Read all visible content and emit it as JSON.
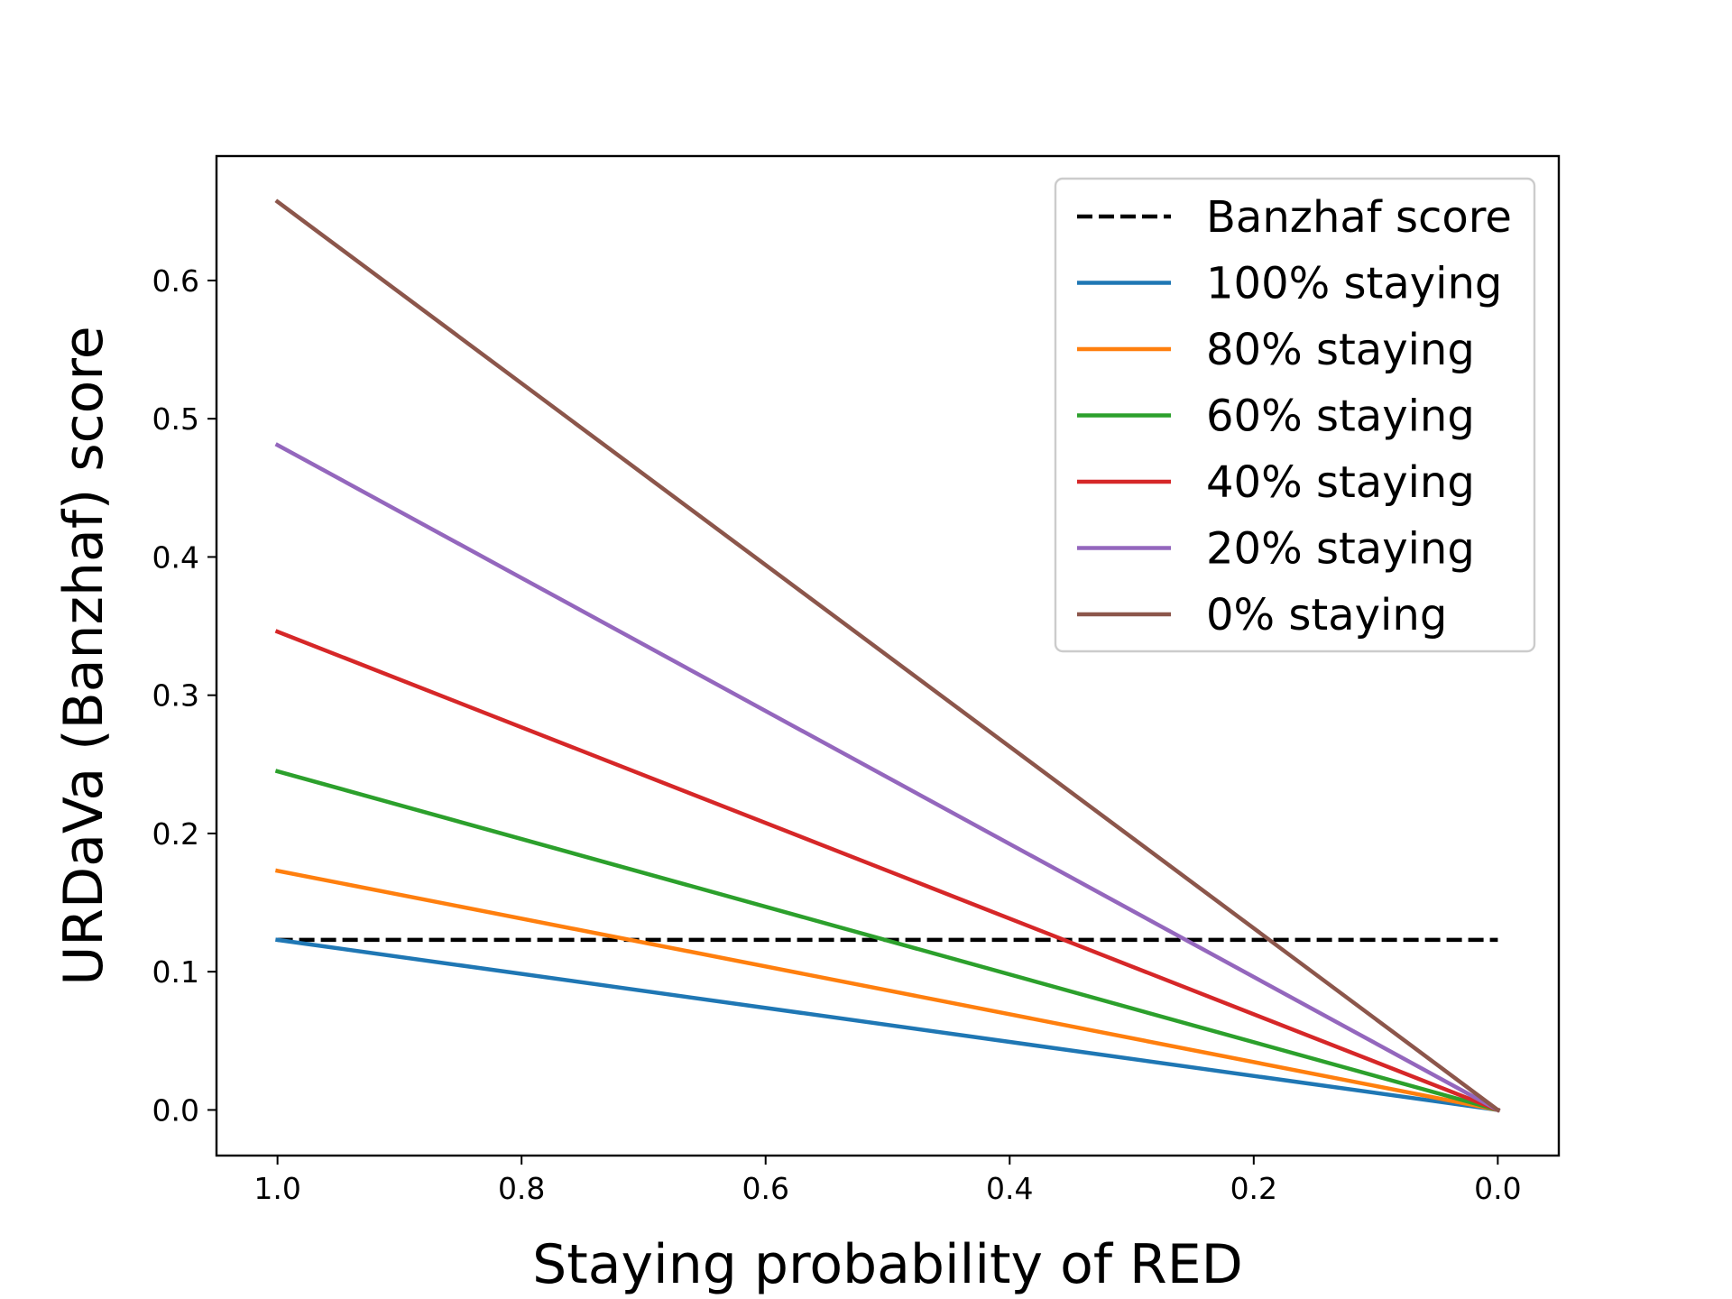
{
  "chart_data": {
    "type": "line",
    "title": "",
    "xlabel": "Staying probability of RED",
    "ylabel": "URDaVa (Banzhaf) score",
    "xlim": [
      1.05,
      -0.05
    ],
    "ylim": [
      -0.033,
      0.69
    ],
    "x_reversed": true,
    "xticks": [
      1.0,
      0.8,
      0.6,
      0.4,
      0.2,
      0.0
    ],
    "xtick_labels": [
      "1.0",
      "0.8",
      "0.6",
      "0.4",
      "0.2",
      "0.0"
    ],
    "yticks": [
      0.0,
      0.1,
      0.2,
      0.3,
      0.4,
      0.5,
      0.6
    ],
    "ytick_labels": [
      "0.0",
      "0.1",
      "0.2",
      "0.3",
      "0.4",
      "0.5",
      "0.6"
    ],
    "grid": false,
    "legend_position": "top-right",
    "series": [
      {
        "name": "Banzhaf score",
        "color": "#000000",
        "dash": true,
        "x": [
          1.0,
          0.0
        ],
        "y": [
          0.123,
          0.123
        ]
      },
      {
        "name": "100% staying",
        "color": "#1f77b4",
        "dash": false,
        "x": [
          1.0,
          0.0
        ],
        "y": [
          0.123,
          0.0
        ]
      },
      {
        "name": "80% staying",
        "color": "#ff7f0e",
        "dash": false,
        "x": [
          1.0,
          0.0
        ],
        "y": [
          0.173,
          0.0
        ]
      },
      {
        "name": "60% staying",
        "color": "#2ca02c",
        "dash": false,
        "x": [
          1.0,
          0.0
        ],
        "y": [
          0.245,
          0.0
        ]
      },
      {
        "name": "40% staying",
        "color": "#d62728",
        "dash": false,
        "x": [
          1.0,
          0.0
        ],
        "y": [
          0.346,
          0.0
        ]
      },
      {
        "name": "20% staying",
        "color": "#9467bd",
        "dash": false,
        "x": [
          1.0,
          0.0
        ],
        "y": [
          0.481,
          0.0
        ]
      },
      {
        "name": "0% staying",
        "color": "#8c564b",
        "dash": false,
        "x": [
          1.0,
          0.0
        ],
        "y": [
          0.657,
          0.0
        ]
      }
    ]
  }
}
